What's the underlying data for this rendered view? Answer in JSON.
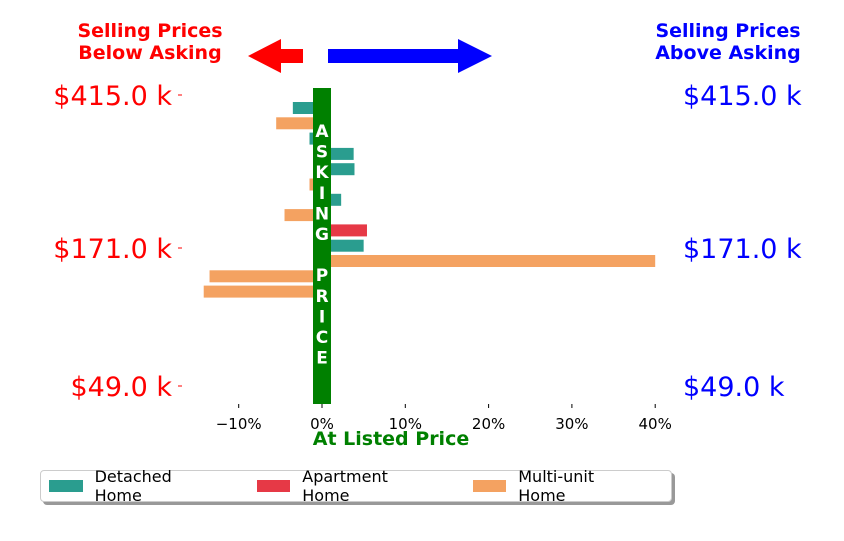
{
  "header": {
    "left_line1": "Selling Prices",
    "left_line2": "Below Asking",
    "right_line1": "Selling Prices",
    "right_line2": "Above Asking",
    "left_color": "#ff0000",
    "right_color": "#0000ff"
  },
  "legend": [
    {
      "label": "Detached Home",
      "color": "#2a9d8f"
    },
    {
      "label": "Apartment Home",
      "color": "#e63946"
    },
    {
      "label": "Multi-unit Home",
      "color": "#f4a261"
    }
  ],
  "chart_data": {
    "type": "bar",
    "orientation": "horizontal",
    "xlabel": "At Listed Price",
    "xlim": [
      -14.5,
      41
    ],
    "x_ticks": [
      -10,
      0,
      10,
      20,
      30,
      40
    ],
    "x_tick_labels": [
      "−10%",
      "0%",
      "10%",
      "20%",
      "30%",
      "40%"
    ],
    "y_tick_labels_left": [
      "$415.0 k",
      "$171.0 k",
      "$49.0 k"
    ],
    "y_tick_labels_right": [
      "$415.0 k",
      "$171.0 k",
      "$49.0 k"
    ],
    "center_band_label": "ASKING PRICE",
    "center_band_color": "#008000",
    "bars": [
      {
        "series": "Detached Home",
        "value": -3.5
      },
      {
        "series": "Multi-unit Home",
        "value": -5.5
      },
      {
        "series": "Detached Home",
        "value": -1.5
      },
      {
        "series": "Detached Home",
        "value": 3.8
      },
      {
        "series": "Detached Home",
        "value": 3.9
      },
      {
        "series": "Multi-unit Home",
        "value": -1.5
      },
      {
        "series": "Detached Home",
        "value": 2.3
      },
      {
        "series": "Multi-unit Home",
        "value": -4.5
      },
      {
        "series": "Apartment Home",
        "value": 5.4
      },
      {
        "series": "Detached Home",
        "value": 5.0
      },
      {
        "series": "Multi-unit Home",
        "value": 40.0
      },
      {
        "series": "Multi-unit Home",
        "value": -13.5
      },
      {
        "series": "Multi-unit Home",
        "value": -14.2
      }
    ],
    "legend_position": "bottom"
  }
}
